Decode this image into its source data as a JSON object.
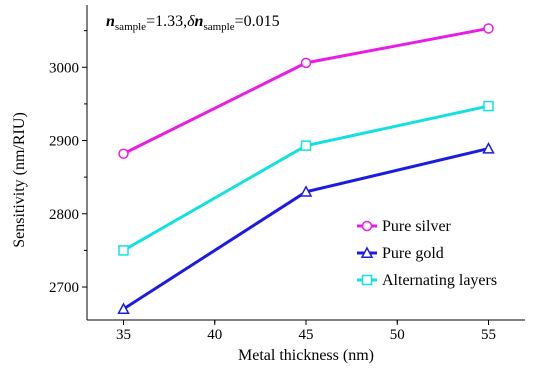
{
  "chart_data": {
    "type": "line",
    "title": "",
    "annotation": {
      "n_symbol": "n",
      "n_subscript": "sample",
      "n_value": "=1.33,",
      "delta_symbol": "δ",
      "delta_n_symbol": "n",
      "delta_subscript": "sample",
      "delta_value": "=0.015"
    },
    "xlabel": "Metal thickness (nm)",
    "ylabel": "Sensitivity (nm/RIU)",
    "xlim": [
      33,
      57
    ],
    "ylim": [
      2655,
      3085
    ],
    "xticks": [
      35,
      40,
      45,
      50,
      55
    ],
    "yticks": [
      2700,
      2800,
      2900,
      3000
    ],
    "x": [
      35,
      45,
      55
    ],
    "series": [
      {
        "name": "Pure silver",
        "values": [
          2882,
          3006,
          3053
        ],
        "color": "#e81ce3",
        "marker": "circle"
      },
      {
        "name": "Pure gold",
        "values": [
          2670,
          2830,
          2889
        ],
        "color": "#1c1ce0",
        "marker": "triangle"
      },
      {
        "name": "Alternating layers",
        "values": [
          2750,
          2893,
          2947
        ],
        "color": "#14e0e0",
        "marker": "square"
      }
    ],
    "legend_position": "bottom-right",
    "grid": false
  }
}
